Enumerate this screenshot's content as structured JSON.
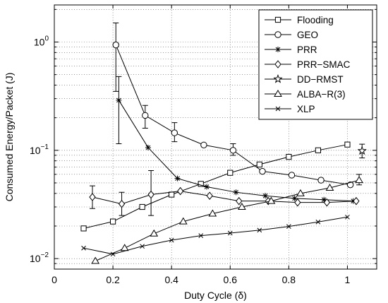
{
  "chart_data": {
    "type": "line",
    "title": "",
    "xlabel": "Duty Cycle (δ)",
    "ylabel": "Consumed Energy/Packet (J)",
    "xlim": [
      0,
      1.1
    ],
    "ylim": [
      0.008,
      2.2
    ],
    "yscale": "log",
    "x_ticks": [
      {
        "value": 0,
        "label": "0"
      },
      {
        "value": 0.2,
        "label": "0.2"
      },
      {
        "value": 0.4,
        "label": "0.4"
      },
      {
        "value": 0.6,
        "label": "0.6"
      },
      {
        "value": 0.8,
        "label": "0.8"
      },
      {
        "value": 1.0,
        "label": "1"
      }
    ],
    "y_ticks": [
      {
        "value": 0.01,
        "base": "10",
        "exp": "−2"
      },
      {
        "value": 0.1,
        "base": "10",
        "exp": "−1"
      },
      {
        "value": 1,
        "base": "10",
        "exp": "0"
      }
    ],
    "grid": "dotted",
    "legend_position": "top-right",
    "series": [
      {
        "name": "Flooding",
        "marker": "square",
        "x": [
          0.1,
          0.2,
          0.3,
          0.4,
          0.5,
          0.6,
          0.7,
          0.8,
          0.9,
          1.0
        ],
        "y": [
          0.019,
          0.022,
          0.03,
          0.039,
          0.049,
          0.062,
          0.074,
          0.087,
          0.1,
          0.113
        ]
      },
      {
        "name": "GEO",
        "marker": "circle",
        "x": [
          0.21,
          0.31,
          0.41,
          0.51,
          0.61,
          0.71,
          0.81,
          0.91,
          1.01
        ],
        "y": [
          0.94,
          0.21,
          0.145,
          0.112,
          0.1,
          0.064,
          0.059,
          0.053,
          0.048
        ],
        "errors": [
          {
            "x": 0.21,
            "low": 0.35,
            "high": 1.5
          },
          {
            "x": 0.31,
            "low": 0.16,
            "high": 0.26
          },
          {
            "x": 0.41,
            "low": 0.12,
            "high": 0.18
          },
          {
            "x": 0.61,
            "low": 0.09,
            "high": 0.115
          }
        ]
      },
      {
        "name": "PRR",
        "marker": "asterisk",
        "x": [
          0.22,
          0.32,
          0.42,
          0.52,
          0.62,
          0.72,
          0.82,
          0.92,
          1.02
        ],
        "y": [
          0.29,
          0.106,
          0.055,
          0.046,
          0.041,
          0.038,
          0.036,
          0.035,
          0.034
        ],
        "errors": [
          {
            "x": 0.22,
            "low": 0.115,
            "high": 0.48
          }
        ]
      },
      {
        "name": "PRR−SMAC",
        "marker": "diamond",
        "x": [
          0.13,
          0.23,
          0.33,
          0.43,
          0.53,
          0.63,
          0.73,
          0.83,
          0.93,
          1.03
        ],
        "y": [
          0.037,
          0.032,
          0.039,
          0.042,
          0.038,
          0.034,
          0.034,
          0.033,
          0.033,
          0.034
        ],
        "errors": [
          {
            "x": 0.13,
            "low": 0.029,
            "high": 0.047
          },
          {
            "x": 0.23,
            "low": 0.025,
            "high": 0.041
          },
          {
            "x": 0.33,
            "low": 0.025,
            "high": 0.065
          }
        ]
      },
      {
        "name": "DD−RMST",
        "marker": "star",
        "x": [
          1.05
        ],
        "y": [
          0.099
        ],
        "errors": [
          {
            "x": 1.05,
            "low": 0.085,
            "high": 0.114
          }
        ]
      },
      {
        "name": "ALBA−R(3)",
        "marker": "triangle",
        "x": [
          0.14,
          0.24,
          0.34,
          0.44,
          0.54,
          0.64,
          0.74,
          0.84,
          0.94,
          1.04
        ],
        "y": [
          0.0095,
          0.0125,
          0.017,
          0.022,
          0.026,
          0.03,
          0.034,
          0.04,
          0.045,
          0.053
        ],
        "errors": [
          {
            "x": 1.04,
            "low": 0.048,
            "high": 0.06
          }
        ]
      },
      {
        "name": "XLP",
        "marker": "x",
        "x": [
          0.1,
          0.2,
          0.3,
          0.4,
          0.5,
          0.6,
          0.7,
          0.8,
          0.9,
          1.0
        ],
        "y": [
          0.0125,
          0.011,
          0.013,
          0.0148,
          0.0163,
          0.0172,
          0.0183,
          0.0198,
          0.0218,
          0.0242
        ]
      }
    ]
  }
}
